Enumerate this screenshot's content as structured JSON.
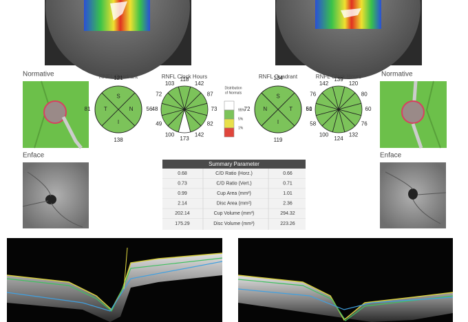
{
  "left": {
    "normative_label": "Normative",
    "enface_label": "Enface",
    "quadrant": {
      "title": "RNFL Quadrant",
      "letters": [
        "S",
        "T",
        "N",
        "I"
      ],
      "values": [
        121,
        81,
        56,
        138
      ]
    },
    "clock": {
      "title": "RNFL Clock Hours",
      "values": [
        118,
        142,
        87,
        73,
        82,
        142,
        173,
        100,
        49,
        48,
        72,
        103
      ],
      "sector_colors": [
        "#7cc35a",
        "#7cc35a",
        "#7cc35a",
        "#7cc35a",
        "#7cc35a",
        "#7cc35a",
        "#ffffff",
        "#7cc35a",
        "#7cc35a",
        "#7cc35a",
        "#7cc35a",
        "#7cc35a"
      ]
    }
  },
  "right": {
    "normative_label": "Normative",
    "enface_label": "Enface",
    "quadrant": {
      "title": "RNFL Quadrant",
      "letters": [
        "S",
        "N",
        "T",
        "I"
      ],
      "values": [
        134,
        72,
        61,
        119
      ]
    },
    "clock": {
      "title": "RNFL Clock Hours",
      "values": [
        139,
        120,
        80,
        60,
        76,
        132,
        124,
        100,
        58,
        50,
        76,
        142
      ],
      "sector_colors": [
        "#7cc35a",
        "#7cc35a",
        "#7cc35a",
        "#7cc35a",
        "#7cc35a",
        "#7cc35a",
        "#7cc35a",
        "#7cc35a",
        "#7cc35a",
        "#7cc35a",
        "#7cc35a",
        "#7cc35a"
      ]
    }
  },
  "legend": {
    "title_line1": "Distribution",
    "title_line2": "of Normals",
    "items": [
      {
        "label": "95%",
        "color": "#7cc35a"
      },
      {
        "label": "5%",
        "color": "#e8e04a"
      },
      {
        "label": "1%",
        "color": "#e0463c"
      }
    ],
    "top_color": "#ffffff"
  },
  "summary": {
    "title": "Summary Parameter",
    "rows": [
      [
        "0.68",
        "C/D Ratio (Horz.)",
        "0.66"
      ],
      [
        "0.73",
        "C/D Ratio (Vert.)",
        "0.71"
      ],
      [
        "0.99",
        "Cup Area (mm²)",
        "1.01"
      ],
      [
        "2.14",
        "Disc Area (mm²)",
        "2.36"
      ],
      [
        "202.14",
        "Cup Volume (mm³)",
        "294.32"
      ],
      [
        "175.29",
        "Disc Volume (mm³)",
        "223.26"
      ]
    ]
  }
}
